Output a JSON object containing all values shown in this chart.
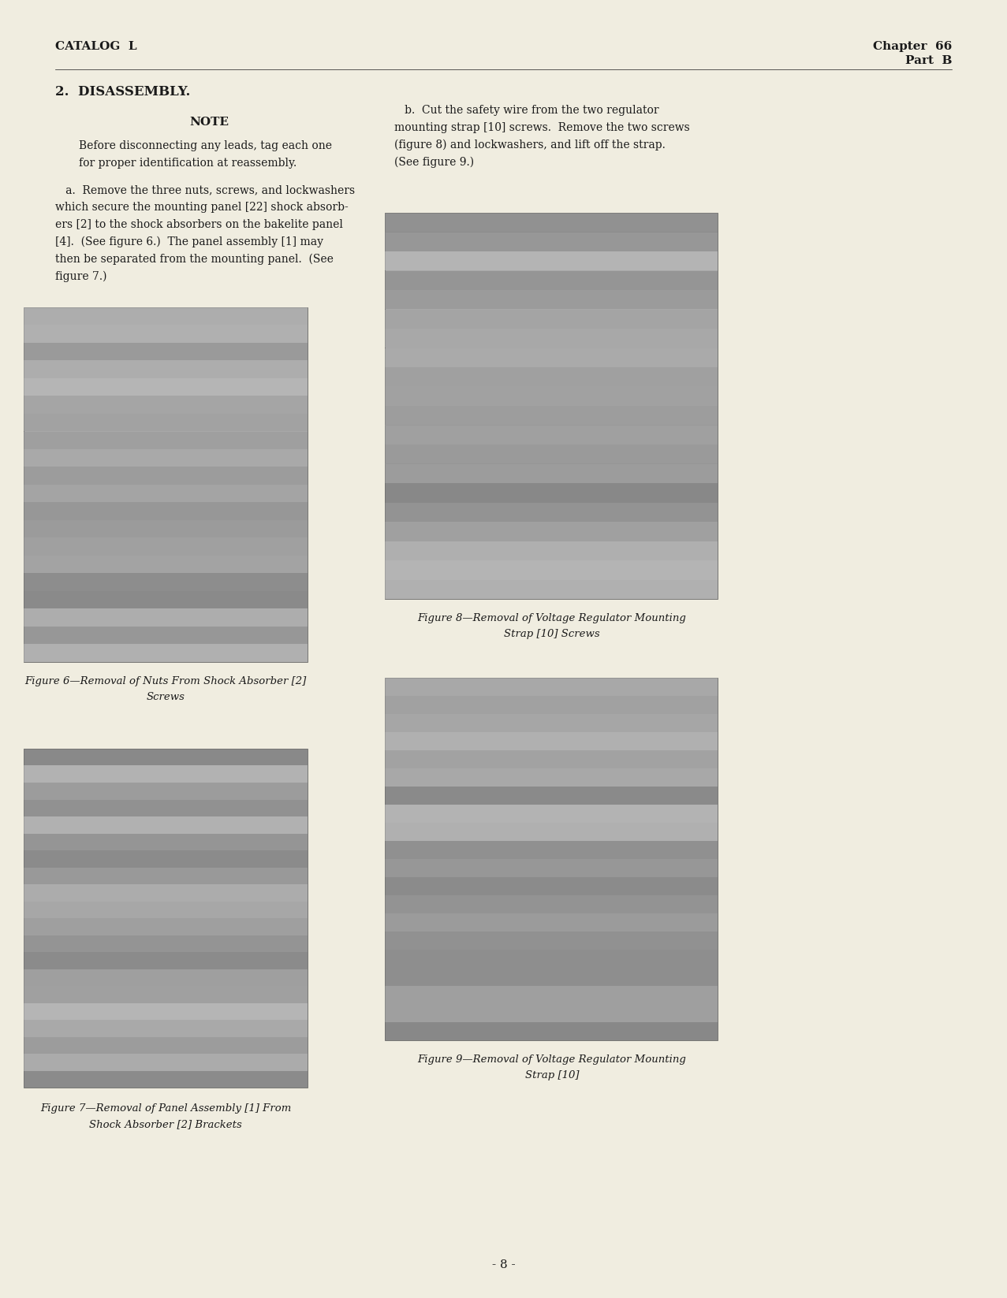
{
  "bg_color": "#f0ede0",
  "text_color": "#1a1a1a",
  "header_left": "CATALOG  L",
  "header_right_line1": "Chapter  66",
  "header_right_line2": "Part  B",
  "section_title": "2.  DISASSEMBLY.",
  "note_heading": "NOTE",
  "note_text_line1": "Before disconnecting any leads, tag each one",
  "note_text_line2": "for proper identification at reassembly.",
  "para_a_text": [
    "   a.  Remove the three nuts, screws, and lockwashers",
    "which secure the mounting panel [22] shock absorb-",
    "ers [2] to the shock absorbers on the bakelite panel",
    "[4].  (See figure 6.)  The panel assembly [1] may",
    "then be separated from the mounting panel.  (See",
    "figure 7.)"
  ],
  "para_b_text": [
    "   b.  Cut the safety wire from the two regulator",
    "mounting strap [10] screws.  Remove the two screws",
    "(figure 8) and lockwashers, and lift off the strap.",
    "(See figure 9.)"
  ],
  "fig6_caption_line1": "Figure 6—Removal of Nuts From Shock Absorber [2]",
  "fig6_caption_line2": "Screws",
  "fig7_caption_line1": "Figure 7—Removal of Panel Assembly [1] From",
  "fig7_caption_line2": "Shock Absorber [2] Brackets",
  "fig8_caption_line1": "Figure 8—Removal of Voltage Regulator Mounting",
  "fig8_caption_line2": "Strap [10] Screws",
  "fig9_caption_line1": "Figure 9—Removal of Voltage Regulator Mounting",
  "fig9_caption_line2": "Strap [10]",
  "footer_text": "- 8 -",
  "photo_color": "#a8a8a8",
  "photo_color_dark": "#888888"
}
